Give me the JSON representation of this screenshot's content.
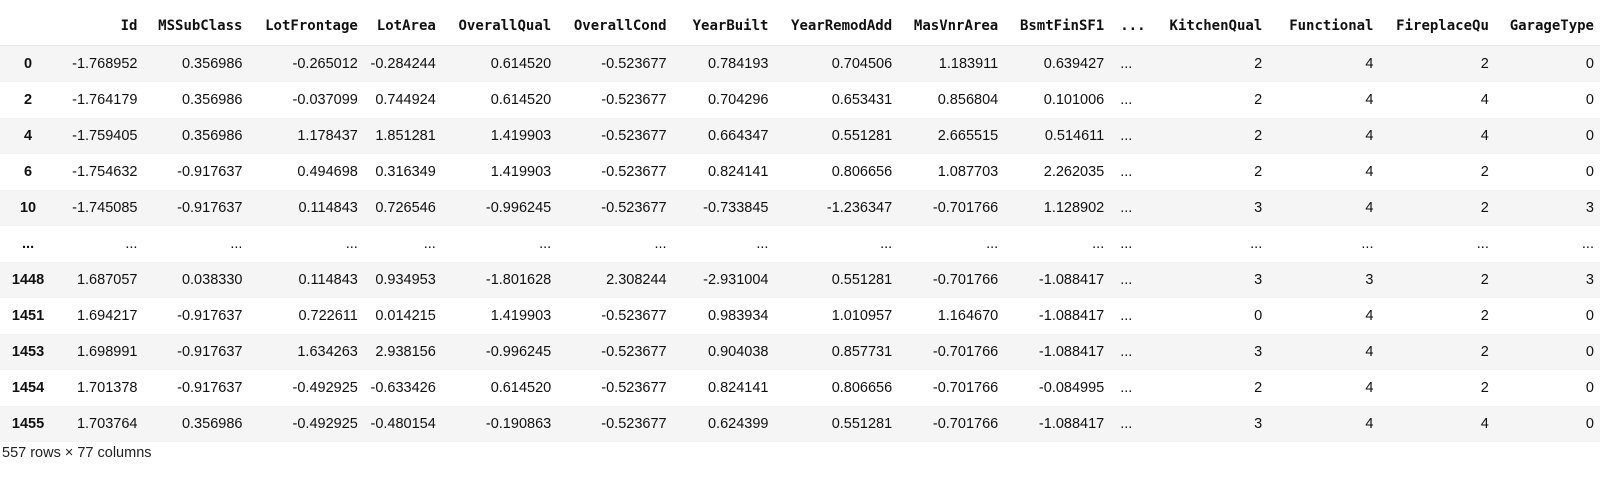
{
  "table": {
    "columns": [
      "",
      "Id",
      "MSSubClass",
      "LotFrontage",
      "LotArea",
      "OverallQual",
      "OverallCond",
      "YearBuilt",
      "YearRemodAdd",
      "MasVnrArea",
      "BsmtFinSF1",
      "...",
      "KitchenQual",
      "Functional",
      "FireplaceQu",
      "GarageType"
    ],
    "rows": [
      [
        "0",
        "-1.768952",
        "0.356986",
        "-0.265012",
        "-0.284244",
        "0.614520",
        "-0.523677",
        "0.784193",
        "0.704506",
        "1.183911",
        "0.639427",
        "...",
        "2",
        "4",
        "2",
        "0"
      ],
      [
        "2",
        "-1.764179",
        "0.356986",
        "-0.037099",
        "0.744924",
        "0.614520",
        "-0.523677",
        "0.704296",
        "0.653431",
        "0.856804",
        "0.101006",
        "...",
        "2",
        "4",
        "4",
        "0"
      ],
      [
        "4",
        "-1.759405",
        "0.356986",
        "1.178437",
        "1.851281",
        "1.419903",
        "-0.523677",
        "0.664347",
        "0.551281",
        "2.665515",
        "0.514611",
        "...",
        "2",
        "4",
        "4",
        "0"
      ],
      [
        "6",
        "-1.754632",
        "-0.917637",
        "0.494698",
        "0.316349",
        "1.419903",
        "-0.523677",
        "0.824141",
        "0.806656",
        "1.087703",
        "2.262035",
        "...",
        "2",
        "4",
        "2",
        "0"
      ],
      [
        "10",
        "-1.745085",
        "-0.917637",
        "0.114843",
        "0.726546",
        "-0.996245",
        "-0.523677",
        "-0.733845",
        "-1.236347",
        "-0.701766",
        "1.128902",
        "...",
        "3",
        "4",
        "2",
        "3"
      ],
      [
        "...",
        "...",
        "...",
        "...",
        "...",
        "...",
        "...",
        "...",
        "...",
        "...",
        "...",
        "...",
        "...",
        "...",
        "...",
        "..."
      ],
      [
        "1448",
        "1.687057",
        "0.038330",
        "0.114843",
        "0.934953",
        "-1.801628",
        "2.308244",
        "-2.931004",
        "0.551281",
        "-0.701766",
        "-1.088417",
        "...",
        "3",
        "3",
        "2",
        "3"
      ],
      [
        "1451",
        "1.694217",
        "-0.917637",
        "0.722611",
        "0.014215",
        "1.419903",
        "-0.523677",
        "0.983934",
        "1.010957",
        "1.164670",
        "-1.088417",
        "...",
        "0",
        "4",
        "2",
        "0"
      ],
      [
        "1453",
        "1.698991",
        "-0.917637",
        "1.634263",
        "2.938156",
        "-0.996245",
        "-0.523677",
        "0.904038",
        "0.857731",
        "-0.701766",
        "-1.088417",
        "...",
        "3",
        "4",
        "2",
        "0"
      ],
      [
        "1454",
        "1.701378",
        "-0.917637",
        "-0.492925",
        "-0.633426",
        "0.614520",
        "-0.523677",
        "0.824141",
        "0.806656",
        "-0.701766",
        "-0.084995",
        "...",
        "2",
        "4",
        "2",
        "0"
      ],
      [
        "1455",
        "1.703764",
        "0.356986",
        "-0.492925",
        "-0.480154",
        "-0.190863",
        "-0.523677",
        "0.624399",
        "0.551281",
        "-0.701766",
        "-1.088417",
        "...",
        "3",
        "4",
        "4",
        "0"
      ]
    ]
  },
  "footer": {
    "shape_text": "557 rows × 77 columns"
  }
}
